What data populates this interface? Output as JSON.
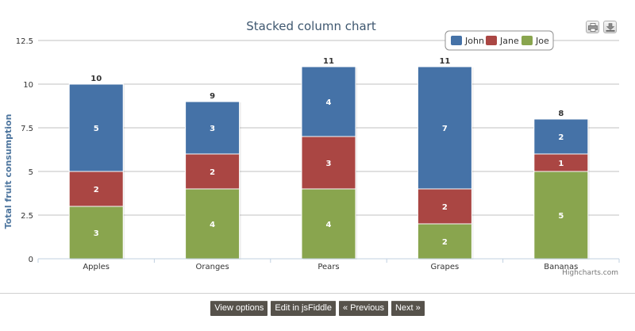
{
  "chart_data": {
    "type": "bar",
    "stacked": true,
    "title": "Stacked column chart",
    "xlabel": "",
    "ylabel": "Total fruit consumption",
    "categories": [
      "Apples",
      "Oranges",
      "Pears",
      "Grapes",
      "Bananas"
    ],
    "series": [
      {
        "name": "John",
        "values": [
          5,
          3,
          4,
          7,
          2
        ],
        "color": "#4572a7"
      },
      {
        "name": "Jane",
        "values": [
          2,
          2,
          3,
          2,
          1
        ],
        "color": "#aa4643"
      },
      {
        "name": "Joe",
        "values": [
          3,
          4,
          4,
          2,
          5
        ],
        "color": "#89a54e"
      }
    ],
    "totals": [
      10,
      9,
      11,
      11,
      8
    ],
    "ylim": [
      0,
      12.5
    ],
    "yticks": [
      "0",
      "2.5",
      "5",
      "7.5",
      "10",
      "12.5"
    ],
    "grid": true,
    "legend_position": "top-right",
    "credits": "Highcharts.com"
  },
  "toolbar": {
    "print_icon": "printer-icon",
    "export_icon": "download-icon"
  },
  "nav": {
    "view_options": "View options",
    "edit_jsfiddle": "Edit in jsFiddle",
    "previous": "« Previous",
    "next": "Next »"
  }
}
